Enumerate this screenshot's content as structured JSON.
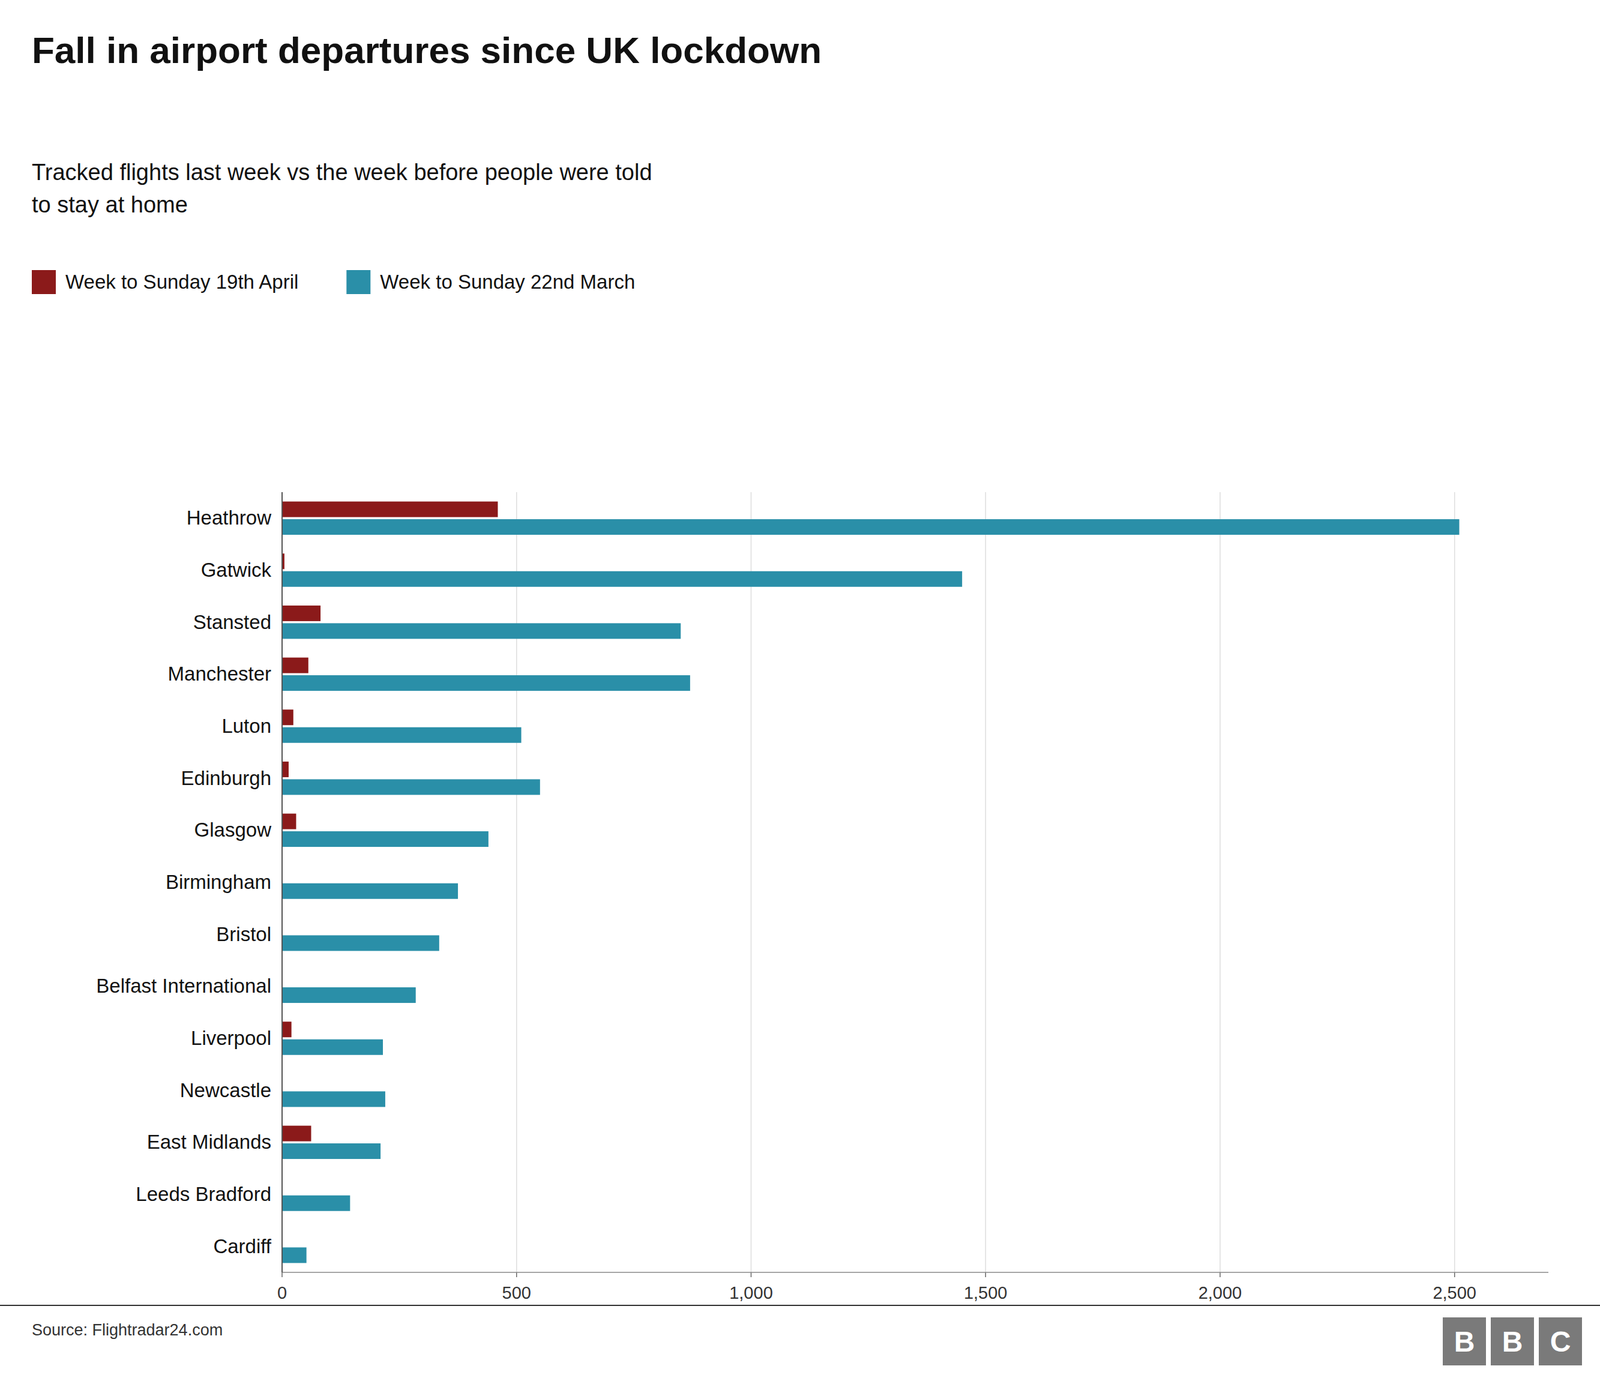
{
  "chart_data": {
    "type": "bar",
    "orientation": "horizontal",
    "title": "Fall in airport departures since UK lockdown",
    "subtitle": "Tracked flights last week vs the week before people were told\nto stay at home",
    "annotations": [
      "Source: Flightradar24.com",
      "B",
      "B",
      "C"
    ],
    "categories": [
      "Heathrow",
      "Gatwick",
      "Stansted",
      "Manchester",
      "Luton",
      "Edinburgh",
      "Glasgow",
      "Birmingham",
      "Bristol",
      "Belfast International",
      "Liverpool",
      "Newcastle",
      "East Midlands",
      "Leeds Bradford",
      "Cardiff"
    ],
    "series": [
      {
        "name": "Week to Sunday 19th April",
        "color": "#8B1A1A",
        "values": [
          460,
          5,
          82,
          56,
          24,
          14,
          30,
          0,
          0,
          0,
          20,
          0,
          62,
          0,
          0
        ]
      },
      {
        "name": "Week to Sunday 22nd March",
        "color": "#2A8FA8",
        "values": [
          2510,
          1450,
          850,
          870,
          510,
          550,
          440,
          375,
          335,
          285,
          215,
          220,
          210,
          145,
          52
        ]
      }
    ],
    "xlim": [
      0,
      2700
    ],
    "xticks": [
      0,
      500,
      {
        "value": 1000,
        "label": "1,000"
      },
      {
        "value": 1500,
        "label": "1,500"
      },
      {
        "value": 2000,
        "label": "2,000"
      },
      {
        "value": 2500,
        "label": "2,500"
      }
    ],
    "grid": true,
    "legend": "top-left"
  }
}
